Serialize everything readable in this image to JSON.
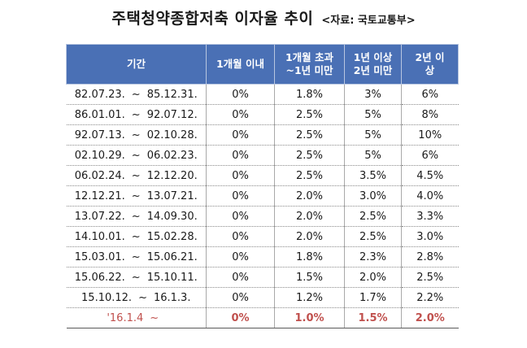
{
  "title": {
    "main": "주택청약종합저축 이자율 추이",
    "source": "<자료: 국토교통부>"
  },
  "table": {
    "headers": [
      [
        "기간"
      ],
      [
        "1개월 이내"
      ],
      [
        "1개월 초과",
        "~1년 미만"
      ],
      [
        "1년 이상",
        "2년 미만"
      ],
      [
        "2년 이",
        "상"
      ]
    ],
    "rows": [
      {
        "start": "82.07.23.",
        "end": "85.12.31.",
        "rates": [
          "0%",
          "1.8%",
          "3%",
          "6%"
        ]
      },
      {
        "start": "86.01.01.",
        "end": "92.07.12.",
        "rates": [
          "0%",
          "2.5%",
          "5%",
          "8%"
        ]
      },
      {
        "start": "92.07.13.",
        "end": "02.10.28.",
        "rates": [
          "0%",
          "2.5%",
          "5%",
          "10%"
        ]
      },
      {
        "start": "02.10.29.",
        "end": "06.02.23.",
        "rates": [
          "0%",
          "2.5%",
          "5%",
          "6%"
        ]
      },
      {
        "start": "06.02.24.",
        "end": "12.12.20.",
        "rates": [
          "0%",
          "2.5%",
          "3.5%",
          "4.5%"
        ]
      },
      {
        "start": "12.12.21.",
        "end": "13.07.21.",
        "rates": [
          "0%",
          "2.0%",
          "3.0%",
          "4.0%"
        ]
      },
      {
        "start": "13.07.22.",
        "end": "14.09.30.",
        "rates": [
          "0%",
          "2.0%",
          "2.5%",
          "3.3%"
        ]
      },
      {
        "start": "14.10.01.",
        "end": "15.02.28.",
        "rates": [
          "0%",
          "2.0%",
          "2.5%",
          "3.0%"
        ]
      },
      {
        "start": "15.03.01.",
        "end": "15.06.21.",
        "rates": [
          "0%",
          "1.8%",
          "2.3%",
          "2.8%"
        ]
      },
      {
        "start": "15.06.22.",
        "end": "15.10.11.",
        "rates": [
          "0%",
          "1.5%",
          "2.0%",
          "2.5%"
        ]
      },
      {
        "start": "15.10.12.",
        "end": "16.1.3.",
        "rates": [
          "0%",
          "1.2%",
          "1.7%",
          "2.2%"
        ]
      },
      {
        "start": "'16.1.4",
        "end": "",
        "rates": [
          "0%",
          "1.0%",
          "1.5%",
          "2.0%"
        ],
        "highlight": true
      }
    ],
    "separator": "~"
  },
  "colors": {
    "header_bg": "#4a70b5",
    "header_text": "#ffffff",
    "highlight_text": "#c0504d"
  }
}
